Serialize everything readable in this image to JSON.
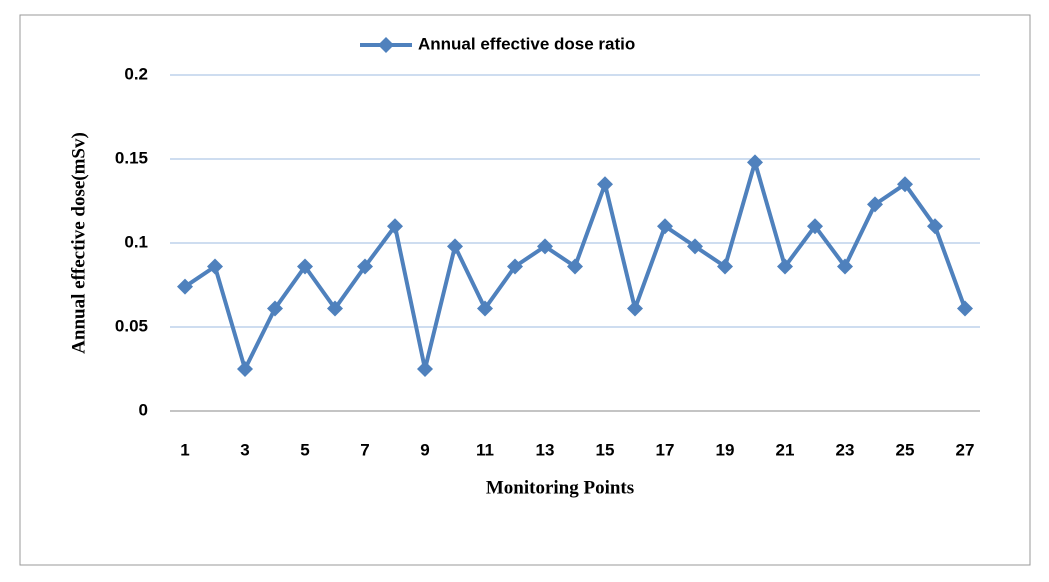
{
  "chart_data": {
    "type": "line",
    "xlabel": "Monitoring Points",
    "ylabel": "Annual effective dose(mSv)",
    "categories": [
      "1",
      null,
      "3",
      null,
      "5",
      null,
      "7",
      null,
      "9",
      null,
      "11",
      null,
      "13",
      null,
      "15",
      null,
      "17",
      null,
      "19",
      null,
      "21",
      null,
      "23",
      null,
      "25",
      null,
      "27"
    ],
    "series": [
      {
        "name": "Annual effective dose ratio",
        "color": "#4f81bd",
        "values": [
          0.074,
          0.086,
          0.025,
          0.061,
          0.086,
          0.061,
          0.086,
          0.11,
          0.025,
          0.098,
          0.061,
          0.086,
          0.098,
          0.086,
          0.135,
          0.061,
          0.11,
          0.098,
          0.086,
          0.148,
          0.086,
          0.11,
          0.086,
          0.123,
          0.135,
          0.11,
          0.061
        ]
      }
    ],
    "ylim": [
      0,
      0.2
    ],
    "yticks": [
      0,
      0.05,
      0.1,
      0.15,
      0.2
    ],
    "grid": true,
    "legend": "top"
  }
}
